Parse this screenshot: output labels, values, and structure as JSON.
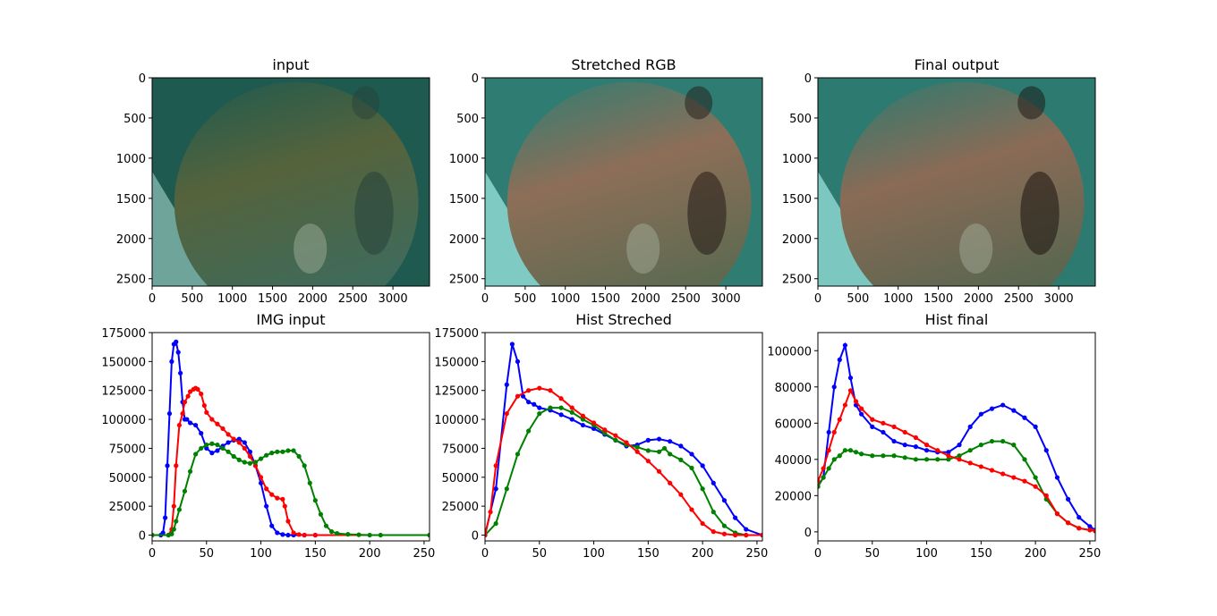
{
  "chart_data": [
    {
      "type": "image",
      "title": "input",
      "image": "underwater coral (input)",
      "xlim": [
        0,
        3456
      ],
      "ylim": [
        2592,
        0
      ],
      "xticks": [
        0,
        500,
        1000,
        1500,
        2000,
        2500,
        3000
      ],
      "yticks": [
        0,
        500,
        1000,
        1500,
        2000,
        2500
      ],
      "colors": {
        "top": "#1e5a4f",
        "mid": "#55633c",
        "bottom": "#3e6b5c",
        "sand": "#6fa49a",
        "shadow": "#27413a"
      }
    },
    {
      "type": "image",
      "title": "Stretched RGB",
      "image": "underwater coral (stretched)",
      "xlim": [
        0,
        3456
      ],
      "ylim": [
        2592,
        0
      ],
      "xticks": [
        0,
        500,
        1000,
        1500,
        2000,
        2500,
        3000
      ],
      "yticks": [
        0,
        500,
        1000,
        1500,
        2000,
        2500
      ],
      "colors": {
        "top": "#2f7d72",
        "mid": "#8d6e58",
        "bottom": "#5b6a50",
        "sand": "#7fcbc4",
        "shadow": "#241915"
      }
    },
    {
      "type": "image",
      "title": "Final output",
      "image": "underwater coral (final)",
      "xlim": [
        0,
        3456
      ],
      "ylim": [
        2592,
        0
      ],
      "xticks": [
        0,
        500,
        1000,
        1500,
        2000,
        2500,
        3000
      ],
      "yticks": [
        0,
        500,
        1000,
        1500,
        2000,
        2500
      ],
      "colors": {
        "top": "#2c7a70",
        "mid": "#8a6b56",
        "bottom": "#586650",
        "sand": "#7cc8c1",
        "shadow": "#1c120f"
      }
    },
    {
      "type": "line",
      "title": "IMG input",
      "xlim": [
        0,
        255
      ],
      "ylim": [
        -5000,
        175000
      ],
      "xticks": [
        0,
        50,
        100,
        150,
        200,
        250
      ],
      "yticks": [
        0,
        25000,
        50000,
        75000,
        100000,
        125000,
        150000,
        175000
      ],
      "series": [
        {
          "color": "#0000ff",
          "x": [
            0,
            8,
            10,
            12,
            14,
            16,
            18,
            20,
            22,
            24,
            26,
            28,
            30,
            32,
            35,
            40,
            45,
            50,
            55,
            60,
            65,
            70,
            75,
            80,
            85,
            90,
            95,
            100,
            105,
            110,
            115,
            120,
            125,
            130,
            140,
            150,
            255
          ],
          "y": [
            0,
            0,
            2000,
            15000,
            60000,
            105000,
            150000,
            165000,
            167000,
            158000,
            140000,
            115000,
            100000,
            100000,
            97000,
            95000,
            88000,
            75000,
            71000,
            73000,
            77000,
            80000,
            82000,
            83000,
            80000,
            72000,
            60000,
            45000,
            25000,
            8000,
            2000,
            500,
            0,
            0,
            0,
            0,
            0
          ]
        },
        {
          "color": "#ff0000",
          "x": [
            0,
            15,
            18,
            20,
            22,
            25,
            28,
            30,
            33,
            35,
            38,
            40,
            42,
            45,
            48,
            50,
            55,
            60,
            65,
            70,
            75,
            80,
            85,
            90,
            95,
            100,
            105,
            110,
            115,
            120,
            122,
            125,
            130,
            135,
            140,
            150,
            255
          ],
          "y": [
            0,
            0,
            5000,
            25000,
            60000,
            95000,
            105000,
            115000,
            120000,
            124000,
            126000,
            127000,
            126000,
            122000,
            112000,
            106000,
            100000,
            96000,
            92000,
            87000,
            83000,
            80000,
            75000,
            68000,
            60000,
            50000,
            40000,
            35000,
            32000,
            31000,
            25000,
            12000,
            2000,
            500,
            0,
            0,
            0
          ]
        },
        {
          "color": "#008000",
          "x": [
            0,
            15,
            18,
            20,
            22,
            25,
            30,
            35,
            40,
            45,
            50,
            55,
            60,
            65,
            70,
            75,
            80,
            85,
            90,
            95,
            100,
            105,
            110,
            115,
            120,
            125,
            130,
            135,
            140,
            145,
            150,
            155,
            160,
            165,
            170,
            180,
            190,
            200,
            210,
            255
          ],
          "y": [
            0,
            0,
            1000,
            5000,
            12000,
            22000,
            38000,
            55000,
            70000,
            75000,
            78000,
            79000,
            78000,
            75000,
            72000,
            68000,
            65000,
            63000,
            62000,
            63000,
            66000,
            69000,
            71000,
            72000,
            72000,
            73000,
            73000,
            68000,
            60000,
            45000,
            30000,
            18000,
            8000,
            3000,
            1500,
            700,
            300,
            0,
            0,
            0
          ]
        }
      ]
    },
    {
      "type": "line",
      "title": "Hist Streched",
      "xlim": [
        0,
        255
      ],
      "ylim": [
        -5000,
        175000
      ],
      "xticks": [
        0,
        50,
        100,
        150,
        200,
        250
      ],
      "yticks": [
        0,
        25000,
        50000,
        75000,
        100000,
        125000,
        150000,
        175000
      ],
      "series": [
        {
          "color": "#0000ff",
          "x": [
            0,
            10,
            20,
            25,
            30,
            35,
            40,
            45,
            50,
            60,
            70,
            80,
            90,
            100,
            110,
            120,
            130,
            140,
            150,
            160,
            170,
            180,
            190,
            200,
            210,
            220,
            230,
            240,
            255
          ],
          "y": [
            0,
            40000,
            130000,
            165000,
            150000,
            120000,
            115000,
            113000,
            110000,
            108000,
            104000,
            100000,
            95000,
            92000,
            87000,
            82000,
            77000,
            78000,
            82000,
            83000,
            81000,
            77000,
            70000,
            60000,
            45000,
            30000,
            15000,
            5000,
            0
          ]
        },
        {
          "color": "#008000",
          "x": [
            0,
            10,
            20,
            30,
            40,
            50,
            60,
            70,
            80,
            90,
            100,
            110,
            120,
            130,
            140,
            150,
            160,
            165,
            170,
            180,
            190,
            200,
            210,
            220,
            230,
            240,
            255
          ],
          "y": [
            0,
            10000,
            40000,
            70000,
            90000,
            105000,
            110000,
            110000,
            106000,
            100000,
            95000,
            88000,
            82000,
            78000,
            76000,
            73000,
            72000,
            75000,
            70000,
            65000,
            58000,
            40000,
            20000,
            8000,
            2000,
            0,
            0
          ]
        },
        {
          "color": "#ff0000",
          "x": [
            0,
            5,
            10,
            20,
            30,
            40,
            50,
            60,
            70,
            80,
            90,
            100,
            110,
            120,
            130,
            140,
            150,
            160,
            170,
            180,
            190,
            200,
            210,
            220,
            230,
            240,
            255
          ],
          "y": [
            0,
            20000,
            60000,
            105000,
            120000,
            125000,
            127000,
            125000,
            118000,
            110000,
            103000,
            97000,
            91000,
            86000,
            80000,
            72000,
            64000,
            55000,
            45000,
            35000,
            22000,
            10000,
            3000,
            1000,
            0,
            0,
            0
          ]
        }
      ]
    },
    {
      "type": "line",
      "title": "Hist final",
      "xlim": [
        0,
        255
      ],
      "ylim": [
        -5000,
        110000
      ],
      "xticks": [
        0,
        50,
        100,
        150,
        200,
        250
      ],
      "yticks": [
        0,
        20000,
        40000,
        60000,
        80000,
        100000
      ],
      "series": [
        {
          "color": "#0000ff",
          "x": [
            0,
            5,
            10,
            15,
            20,
            25,
            30,
            35,
            40,
            50,
            60,
            70,
            80,
            90,
            100,
            110,
            120,
            130,
            140,
            150,
            160,
            170,
            180,
            190,
            200,
            210,
            220,
            230,
            240,
            250,
            255
          ],
          "y": [
            25000,
            30000,
            55000,
            80000,
            95000,
            103000,
            85000,
            70000,
            65000,
            58000,
            55000,
            50000,
            48000,
            47000,
            45000,
            44000,
            44000,
            48000,
            58000,
            65000,
            68000,
            70000,
            67000,
            63000,
            58000,
            45000,
            30000,
            18000,
            8000,
            3000,
            1000
          ]
        },
        {
          "color": "#008000",
          "x": [
            0,
            5,
            10,
            15,
            20,
            25,
            30,
            35,
            40,
            50,
            60,
            70,
            80,
            90,
            100,
            110,
            120,
            130,
            140,
            150,
            160,
            170,
            180,
            190,
            200,
            210,
            220,
            230,
            240,
            250,
            255
          ],
          "y": [
            25000,
            30000,
            35000,
            40000,
            42000,
            45000,
            45000,
            44000,
            43000,
            42000,
            42000,
            42000,
            41000,
            40000,
            40000,
            40000,
            40000,
            42000,
            45000,
            48000,
            50000,
            50000,
            48000,
            40000,
            30000,
            18000,
            10000,
            5000,
            2000,
            1000,
            500
          ]
        },
        {
          "color": "#ff0000",
          "x": [
            0,
            5,
            10,
            15,
            20,
            25,
            30,
            35,
            40,
            50,
            60,
            70,
            80,
            90,
            100,
            110,
            120,
            130,
            140,
            150,
            160,
            170,
            180,
            190,
            200,
            210,
            220,
            230,
            240,
            250,
            255
          ],
          "y": [
            28000,
            35000,
            45000,
            55000,
            62000,
            70000,
            78000,
            72000,
            68000,
            62000,
            60000,
            58000,
            55000,
            52000,
            48000,
            45000,
            42000,
            40000,
            38000,
            36000,
            34000,
            32000,
            30000,
            28000,
            25000,
            20000,
            10000,
            5000,
            2000,
            1000,
            500
          ]
        }
      ]
    }
  ]
}
